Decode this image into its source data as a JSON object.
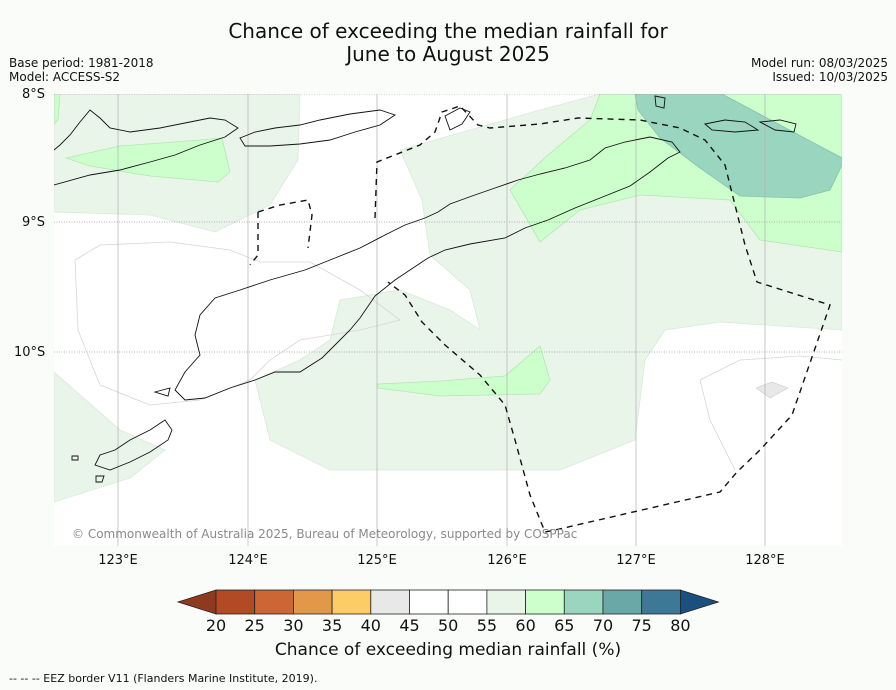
{
  "title_line1": "Chance of exceeding the median rainfall for",
  "title_line2": "June to August 2025",
  "meta": {
    "base_period": "Base period: 1981-2018",
    "model": "Model: ACCESS-S2",
    "model_run": "Model run: 08/03/2025",
    "issued": "Issued: 10/03/2025"
  },
  "map": {
    "lat_labels": [
      "8°S",
      "9°S",
      "10°S"
    ],
    "lon_labels": [
      "123°E",
      "124°E",
      "125°E",
      "126°E",
      "127°E",
      "128°E"
    ],
    "copyright": "© Commonwealth of Australia 2025, Bureau of Meteorology, supported by COSPPac"
  },
  "colorbar": {
    "title": "Chance of exceeding median rainfall (%)",
    "ticks": [
      "20",
      "25",
      "30",
      "35",
      "40",
      "45",
      "50",
      "55",
      "60",
      "65",
      "70",
      "75",
      "80"
    ],
    "colors": [
      "#8f3a1f",
      "#b24a26",
      "#cc6634",
      "#e29848",
      "#fccc66",
      "#e8e8e8",
      "#ffffff",
      "#ffffff",
      "#eaf5ea",
      "#ccffcc",
      "#9ad5bf",
      "#6aa8a8",
      "#3e7897",
      "#1a4f80"
    ]
  },
  "footnote": "--  --  -- EEZ border V11 (Flanders Marine Institute, 2019)."
}
